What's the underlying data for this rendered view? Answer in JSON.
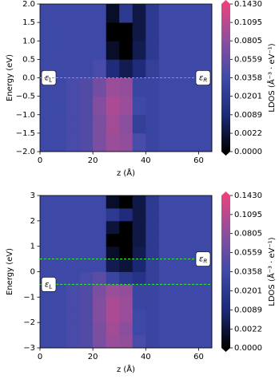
{
  "chart_data": [
    {
      "type": "heatmap",
      "ylabel": "Energy (eV)",
      "xlabel": "z (Å)",
      "xlim": [
        0,
        65
      ],
      "xticks": [
        0,
        20,
        40,
        60
      ],
      "ylim": [
        -2,
        2
      ],
      "yticks": [
        {
          "value": -2,
          "label": "−2.0"
        },
        {
          "value": -1.5,
          "label": "−1.5"
        },
        {
          "value": -1,
          "label": "−1.0"
        },
        {
          "value": -0.5,
          "label": "−0.5"
        },
        {
          "value": 0,
          "label": "0.0"
        },
        0.5,
        {
          "value": 1,
          "label": "1.0"
        },
        1.5,
        {
          "value": 2,
          "label": "2.0"
        }
      ],
      "z": [
        [
          0.035,
          0.035,
          0.04,
          0.045,
          0.07,
          0.09,
          0.085,
          0.04,
          0.03,
          0.035,
          0.035,
          0.035,
          0.035
        ],
        [
          0.035,
          0.035,
          0.04,
          0.045,
          0.07,
          0.095,
          0.08,
          0.025,
          0.03,
          0.035,
          0.035,
          0.035,
          0.035
        ],
        [
          0.035,
          0.035,
          0.04,
          0.045,
          0.075,
          0.1,
          0.09,
          0.035,
          0.03,
          0.035,
          0.035,
          0.035,
          0.035
        ],
        [
          0.035,
          0.035,
          0.04,
          0.045,
          0.065,
          0.09,
          0.085,
          0.03,
          0.03,
          0.035,
          0.035,
          0.035,
          0.035
        ],
        [
          0.035,
          0.035,
          0.035,
          0.035,
          0.04,
          0.01,
          0.004,
          0.01,
          0.025,
          0.035,
          0.035,
          0.035,
          0.035
        ],
        [
          0.035,
          0.035,
          0.035,
          0.035,
          0.035,
          0.001,
          0,
          0.004,
          0.02,
          0.035,
          0.035,
          0.035,
          0.035
        ],
        [
          0.035,
          0.035,
          0.035,
          0.035,
          0.035,
          0,
          0,
          0.003,
          0.02,
          0.035,
          0.035,
          0.035,
          0.035
        ],
        [
          0.035,
          0.035,
          0.035,
          0.035,
          0.035,
          0.001,
          0.02,
          0.003,
          0.02,
          0.035,
          0.035,
          0.035,
          0.035
        ]
      ],
      "colorbar": {
        "label": "LDOS (Å⁻³ · eV⁻¹)",
        "clim": [
          0,
          0.143
        ],
        "gamma": 0.5,
        "colormap": [
          "#000000",
          "#1c2a78",
          "#3f4aa8",
          "#8a4f9e",
          "#e8437e"
        ],
        "ticks": [
          {
            "value": 0,
            "label": "0.0000"
          },
          0.0022,
          0.0089,
          0.0201,
          0.0358,
          0.0559,
          0.0805,
          0.1095,
          {
            "value": 0.143,
            "label": "0.1430"
          }
        ]
      },
      "lines": [
        {
          "y": 0,
          "color": "#33dd33",
          "symbol": "ε",
          "subscript": "L",
          "side": "left"
        },
        {
          "y": 0,
          "color": "#33dd33",
          "symbol": "ε",
          "subscript": "R",
          "side": "right"
        }
      ]
    },
    {
      "type": "heatmap",
      "ylabel": "Energy (eV)",
      "xlabel": "z (Å)",
      "xlim": [
        0,
        65
      ],
      "xticks": [
        0,
        20,
        40,
        60
      ],
      "ylim": [
        -3,
        3
      ],
      "yticks": [
        {
          "value": -3,
          "label": "−3"
        },
        {
          "value": -2,
          "label": "−2"
        },
        {
          "value": -1,
          "label": "−1"
        },
        0,
        1,
        2,
        3
      ],
      "z": [
        [
          0.035,
          0.035,
          0.04,
          0.045,
          0.07,
          0.09,
          0.085,
          0.04,
          0.03,
          0.035,
          0.035,
          0.035,
          0.035
        ],
        [
          0.035,
          0.035,
          0.04,
          0.045,
          0.07,
          0.095,
          0.08,
          0.035,
          0.03,
          0.035,
          0.035,
          0.035,
          0.035
        ],
        [
          0.035,
          0.035,
          0.04,
          0.045,
          0.075,
          0.1,
          0.09,
          0.035,
          0.03,
          0.035,
          0.035,
          0.035,
          0.035
        ],
        [
          0.035,
          0.035,
          0.04,
          0.045,
          0.075,
          0.1,
          0.09,
          0.03,
          0.03,
          0.035,
          0.035,
          0.035,
          0.035
        ],
        [
          0.035,
          0.035,
          0.04,
          0.045,
          0.07,
          0.09,
          0.085,
          0.03,
          0.03,
          0.035,
          0.035,
          0.035,
          0.035
        ],
        [
          0.035,
          0.035,
          0.035,
          0.04,
          0.05,
          0.03,
          0.02,
          0.015,
          0.025,
          0.035,
          0.035,
          0.035,
          0.035
        ],
        [
          0.035,
          0.035,
          0.035,
          0.035,
          0.035,
          0.004,
          0.002,
          0.008,
          0.025,
          0.035,
          0.035,
          0.035,
          0.035
        ],
        [
          0.035,
          0.035,
          0.035,
          0.035,
          0.035,
          0.001,
          0,
          0.004,
          0.02,
          0.035,
          0.035,
          0.035,
          0.035
        ],
        [
          0.035,
          0.035,
          0.035,
          0.035,
          0.035,
          0,
          0,
          0.003,
          0.02,
          0.035,
          0.035,
          0.035,
          0.035
        ],
        [
          0.035,
          0.035,
          0.035,
          0.035,
          0.035,
          0.002,
          0,
          0.003,
          0.02,
          0.035,
          0.035,
          0.035,
          0.035
        ],
        [
          0.035,
          0.035,
          0.035,
          0.035,
          0.035,
          0.02,
          0.01,
          0.003,
          0.02,
          0.035,
          0.035,
          0.035,
          0.035
        ],
        [
          0.035,
          0.035,
          0.035,
          0.035,
          0.035,
          0.001,
          0,
          0.003,
          0.02,
          0.035,
          0.035,
          0.035,
          0.035
        ]
      ],
      "colorbar": {
        "label": "LDOS (Å⁻³ · eV⁻¹)",
        "clim": [
          0,
          0.143
        ],
        "gamma": 0.5,
        "colormap": [
          "#000000",
          "#1c2a78",
          "#3f4aa8",
          "#8a4f9e",
          "#e8437e"
        ],
        "ticks": [
          {
            "value": 0,
            "label": "0.0000"
          },
          0.0022,
          0.0089,
          0.0201,
          0.0358,
          0.0559,
          0.0805,
          0.1095,
          {
            "value": 0.143,
            "label": "0.1430"
          }
        ]
      },
      "lines": [
        {
          "y": 0.5,
          "color": "#33dd33",
          "symbol": "ε",
          "subscript": "R",
          "side": "right"
        },
        {
          "y": -0.5,
          "color": "#33dd33",
          "symbol": "ε",
          "subscript": "L",
          "side": "left"
        }
      ]
    }
  ]
}
